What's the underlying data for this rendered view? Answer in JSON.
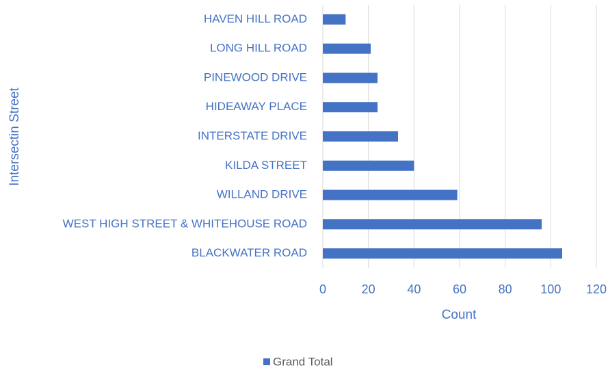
{
  "chart_data": {
    "type": "barh",
    "categories": [
      "HAVEN HILL ROAD",
      "LONG HILL ROAD",
      "PINEWOOD DRIVE",
      "HIDEAWAY PLACE",
      "INTERSTATE DRIVE",
      "KILDA STREET",
      "WILLAND DRIVE",
      "WEST HIGH STREET & WHITEHOUSE ROAD",
      "BLACKWATER ROAD"
    ],
    "series": [
      {
        "name": "Grand Total",
        "color": "#4472c4",
        "values": [
          10,
          21,
          24,
          24,
          33,
          40,
          59,
          96,
          105
        ]
      }
    ],
    "xlim": [
      0,
      120
    ],
    "xticks": [
      0,
      20,
      40,
      60,
      80,
      100,
      120
    ],
    "xlabel": "Count",
    "ylabel": "Intersectin Street",
    "grid": true,
    "legend": "bottom"
  }
}
